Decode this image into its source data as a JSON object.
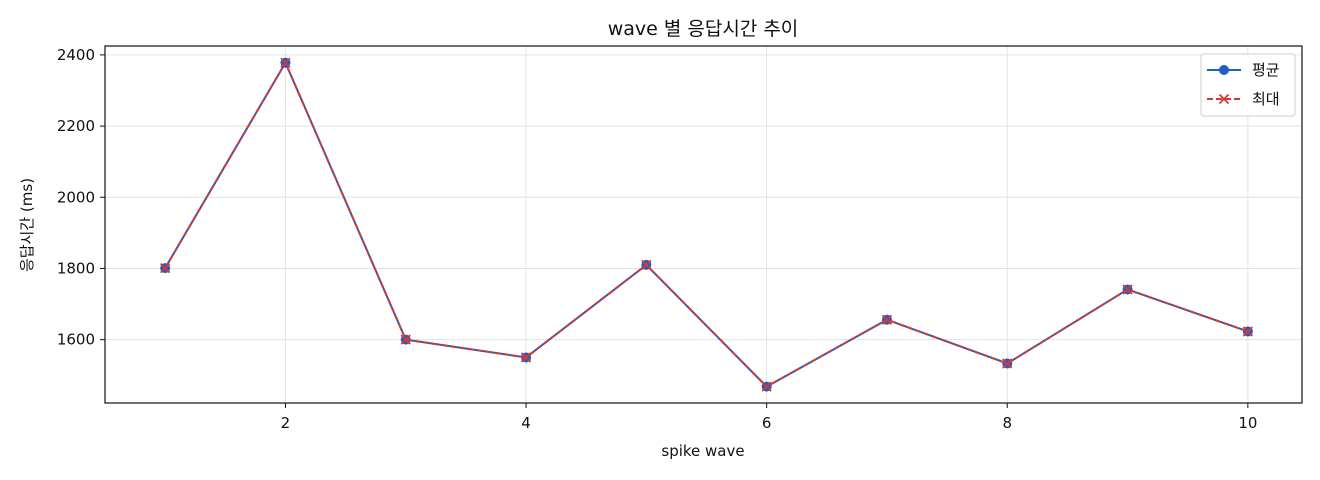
{
  "chart_data": {
    "type": "line",
    "title": "wave 별 응답시간 추이",
    "xlabel": "spike wave",
    "ylabel": "응답시간 (ms)",
    "x": [
      1,
      2,
      3,
      4,
      5,
      6,
      7,
      8,
      9,
      10
    ],
    "xlim": [
      0.5,
      10.45
    ],
    "ylim": [
      1422,
      2425
    ],
    "xticks": [
      2,
      4,
      6,
      8,
      10
    ],
    "yticks": [
      1600,
      1800,
      2000,
      2200,
      2400
    ],
    "grid": true,
    "legend_position": "top-right",
    "series": [
      {
        "name": "평균",
        "values": [
          1801,
          2378,
          1600,
          1550,
          1810,
          1468,
          1656,
          1533,
          1741,
          1623
        ],
        "color": "#1f5fbf",
        "marker": "circle",
        "line_style": "solid"
      },
      {
        "name": "최대",
        "values": [
          1801,
          2378,
          1600,
          1550,
          1810,
          1468,
          1656,
          1533,
          1741,
          1623
        ],
        "color": "#d03a3a",
        "marker": "x",
        "line_style": "dashed"
      }
    ]
  }
}
